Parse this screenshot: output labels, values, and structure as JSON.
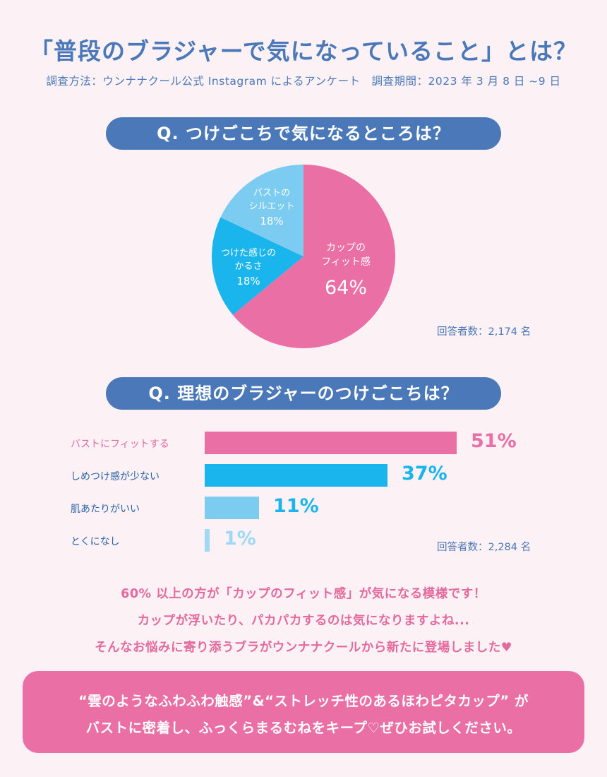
{
  "title": "「普段のブラジャーで気になっていること」とは？",
  "subtitle": "調査方法：ウンナナクール公式 Instagram によるアンケート　調査期間：2023 年 3 月 8 日 ~9 日",
  "colors": {
    "blue": "#4a78b8",
    "pink": "#ea6fa4",
    "cyan": "#19b5ec",
    "light_blue": "#7ccbf0",
    "background": "#fcf1f5"
  },
  "chart_data": [
    {
      "type": "pie",
      "title": "Q. つけごこちで気になるところは？",
      "slices": [
        {
          "label_lines": [
            "カップの",
            "フィット感"
          ],
          "value": 64,
          "value_label": "64%",
          "color": "#ea6fa4"
        },
        {
          "label_lines": [
            "つけた感じの",
            "かるさ"
          ],
          "value": 18,
          "value_label": "18%",
          "color": "#19b5ec"
        },
        {
          "label_lines": [
            "バストの",
            "シルエット"
          ],
          "value": 18,
          "value_label": "18%",
          "color": "#7ccbf0"
        }
      ],
      "respondents": "回答者数：2,174 名"
    },
    {
      "type": "bar",
      "orientation": "horizontal",
      "title": "Q. 理想のブラジャーのつけごこちは？",
      "categories": [
        "バストにフィットする",
        "しめつけ感が少ない",
        "肌あたりがいい",
        "とくになし"
      ],
      "values": [
        51,
        37,
        11,
        1
      ],
      "value_labels": [
        "51%",
        "37%",
        "11%",
        "1%"
      ],
      "colors": [
        "#ea6fa4",
        "#19b5ec",
        "#7ccbf0",
        "#9fd9f5"
      ],
      "label_colors": [
        "#e46a9e",
        "#2b63a8",
        "#2b63a8",
        "#2b63a8"
      ],
      "respondents": "回答者数：2,284 名"
    }
  ],
  "message": {
    "line1": "60% 以上の方が「カップのフィット感」が気になる模様です！",
    "line2": "カップが浮いたり、パカパカするのは気になりますよね...",
    "line3": "そんなお悩みに寄り添うブラがウンナナクールから新たに登場しました",
    "heart": "♥"
  },
  "cta": {
    "line1": "“雲のようなふわふわ触感”&“ストレッチ性のあるほわピタカップ” が",
    "line2": "バストに密着し、ふっくらまるむねをキープ♡ぜひお試しください。"
  }
}
